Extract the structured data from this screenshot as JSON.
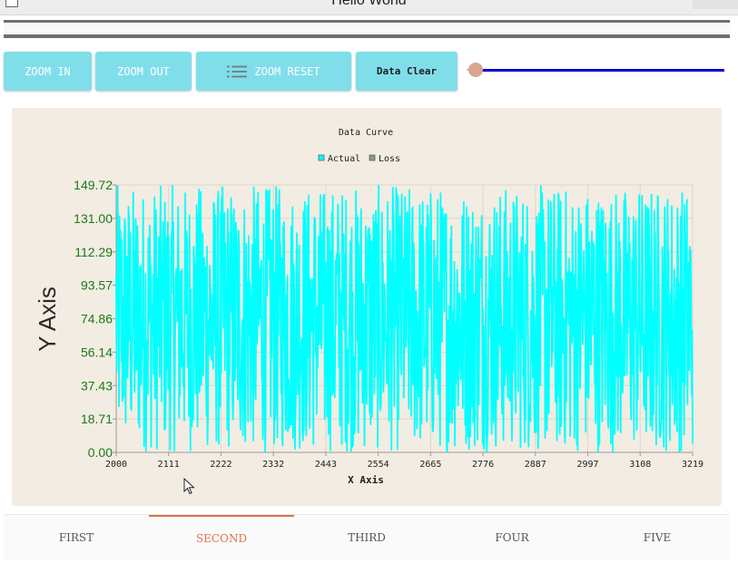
{
  "window": {
    "title": "Hello World"
  },
  "toolbar": {
    "zoom_in_label": "ZOOM IN",
    "zoom_out_label": "ZOOM OUT",
    "zoom_reset_label": "ZOOM RESET",
    "zoom_reset_icon": "menu-icon",
    "data_clear_label": "Data Clear"
  },
  "slider": {
    "value": 0.0,
    "fill_color": "#0000cc",
    "thumb_color": "#d9a58f"
  },
  "chart_data": {
    "type": "line",
    "title": "Data Curve",
    "xlabel": "X Axis",
    "ylabel": "Y Axis",
    "x_range": [
      2000,
      3219
    ],
    "ylim": [
      0.0,
      149.72
    ],
    "x_ticks": [
      "2000",
      "2111",
      "2222",
      "2332",
      "2443",
      "2554",
      "2665",
      "2776",
      "2887",
      "2997",
      "3108",
      "3219"
    ],
    "y_ticks": [
      "0.00",
      "18.71",
      "37.43",
      "56.14",
      "74.86",
      "93.57",
      "112.29",
      "131.00",
      "149.72"
    ],
    "grid": true,
    "legend_position": "top-center",
    "series": [
      {
        "name": "Actual",
        "color": "#00ffff",
        "pattern": "dense random samples spanning ~0 to ~149.72 over x 2000-3219"
      },
      {
        "name": "Loss",
        "color": "#8c9a78",
        "values": []
      }
    ]
  },
  "tabs": [
    {
      "label": "FIRST",
      "active": false
    },
    {
      "label": "SECOND",
      "active": true
    },
    {
      "label": "THIRD",
      "active": false
    },
    {
      "label": "FOUR",
      "active": false
    },
    {
      "label": "FIVE",
      "active": false
    }
  ]
}
